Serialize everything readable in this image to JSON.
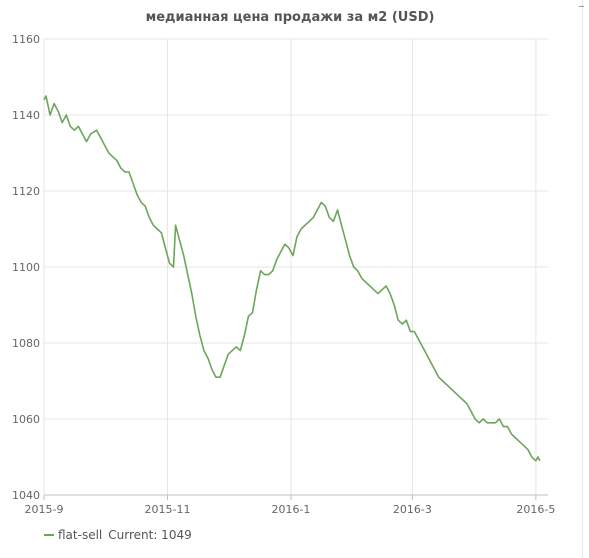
{
  "chart_data": {
    "type": "line",
    "title": "медианная цена продажи за м2 (USD)",
    "xlabel": "",
    "ylabel": "",
    "ylim": [
      1040,
      1160
    ],
    "yticks": [
      1040,
      1060,
      1080,
      1100,
      1120,
      1140,
      1160
    ],
    "xticks": [
      "2015-9",
      "2015-11",
      "2016-1",
      "2016-3",
      "2016-5"
    ],
    "x_range": [
      "2015-09-01",
      "2016-05-07"
    ],
    "grid": true,
    "legend_position": "bottom-left",
    "series": [
      {
        "name": "flat-sell",
        "color": "#6da55b",
        "points": [
          [
            "2015-09-01",
            1144
          ],
          [
            "2015-09-02",
            1145
          ],
          [
            "2015-09-04",
            1140
          ],
          [
            "2015-09-06",
            1143
          ],
          [
            "2015-09-08",
            1141
          ],
          [
            "2015-09-10",
            1138
          ],
          [
            "2015-09-12",
            1140
          ],
          [
            "2015-09-14",
            1137
          ],
          [
            "2015-09-16",
            1136
          ],
          [
            "2015-09-18",
            1137
          ],
          [
            "2015-09-20",
            1135
          ],
          [
            "2015-09-22",
            1133
          ],
          [
            "2015-09-24",
            1135
          ],
          [
            "2015-09-27",
            1136
          ],
          [
            "2015-09-29",
            1134
          ],
          [
            "2015-10-01",
            1132
          ],
          [
            "2015-10-03",
            1130
          ],
          [
            "2015-10-05",
            1129
          ],
          [
            "2015-10-07",
            1128
          ],
          [
            "2015-10-09",
            1126
          ],
          [
            "2015-10-11",
            1125
          ],
          [
            "2015-10-13",
            1125
          ],
          [
            "2015-10-15",
            1122
          ],
          [
            "2015-10-17",
            1119
          ],
          [
            "2015-10-19",
            1117
          ],
          [
            "2015-10-21",
            1116
          ],
          [
            "2015-10-23",
            1113
          ],
          [
            "2015-10-25",
            1111
          ],
          [
            "2015-10-27",
            1110
          ],
          [
            "2015-10-29",
            1109
          ],
          [
            "2015-10-31",
            1105
          ],
          [
            "2015-11-02",
            1101
          ],
          [
            "2015-11-04",
            1100
          ],
          [
            "2015-11-05",
            1111
          ],
          [
            "2015-11-07",
            1107
          ],
          [
            "2015-11-09",
            1103
          ],
          [
            "2015-11-11",
            1098
          ],
          [
            "2015-11-13",
            1093
          ],
          [
            "2015-11-15",
            1087
          ],
          [
            "2015-11-17",
            1082
          ],
          [
            "2015-11-19",
            1078
          ],
          [
            "2015-11-21",
            1076
          ],
          [
            "2015-11-23",
            1073
          ],
          [
            "2015-11-25",
            1071
          ],
          [
            "2015-11-27",
            1071
          ],
          [
            "2015-11-29",
            1074
          ],
          [
            "2015-12-01",
            1077
          ],
          [
            "2015-12-03",
            1078
          ],
          [
            "2015-12-05",
            1079
          ],
          [
            "2015-12-07",
            1078
          ],
          [
            "2015-12-09",
            1082
          ],
          [
            "2015-12-11",
            1087
          ],
          [
            "2015-12-13",
            1088
          ],
          [
            "2015-12-15",
            1094
          ],
          [
            "2015-12-17",
            1099
          ],
          [
            "2015-12-19",
            1098
          ],
          [
            "2015-12-21",
            1098
          ],
          [
            "2015-12-23",
            1099
          ],
          [
            "2015-12-25",
            1102
          ],
          [
            "2015-12-27",
            1104
          ],
          [
            "2015-12-29",
            1106
          ],
          [
            "2015-12-31",
            1105
          ],
          [
            "2016-01-02",
            1103
          ],
          [
            "2016-01-04",
            1108
          ],
          [
            "2016-01-06",
            1110
          ],
          [
            "2016-01-08",
            1111
          ],
          [
            "2016-01-10",
            1112
          ],
          [
            "2016-01-12",
            1113
          ],
          [
            "2016-01-14",
            1115
          ],
          [
            "2016-01-16",
            1117
          ],
          [
            "2016-01-18",
            1116
          ],
          [
            "2016-01-20",
            1113
          ],
          [
            "2016-01-22",
            1112
          ],
          [
            "2016-01-24",
            1115
          ],
          [
            "2016-01-26",
            1111
          ],
          [
            "2016-01-28",
            1107
          ],
          [
            "2016-01-30",
            1103
          ],
          [
            "2016-02-01",
            1100
          ],
          [
            "2016-02-03",
            1099
          ],
          [
            "2016-02-05",
            1097
          ],
          [
            "2016-02-07",
            1096
          ],
          [
            "2016-02-09",
            1095
          ],
          [
            "2016-02-11",
            1094
          ],
          [
            "2016-02-13",
            1093
          ],
          [
            "2016-02-15",
            1094
          ],
          [
            "2016-02-17",
            1095
          ],
          [
            "2016-02-19",
            1093
          ],
          [
            "2016-02-21",
            1090
          ],
          [
            "2016-02-23",
            1086
          ],
          [
            "2016-02-25",
            1085
          ],
          [
            "2016-02-27",
            1086
          ],
          [
            "2016-02-29",
            1083
          ],
          [
            "2016-03-02",
            1083
          ],
          [
            "2016-03-04",
            1081
          ],
          [
            "2016-03-06",
            1079
          ],
          [
            "2016-03-08",
            1077
          ],
          [
            "2016-03-10",
            1075
          ],
          [
            "2016-03-12",
            1073
          ],
          [
            "2016-03-14",
            1071
          ],
          [
            "2016-03-16",
            1070
          ],
          [
            "2016-03-18",
            1069
          ],
          [
            "2016-03-20",
            1068
          ],
          [
            "2016-03-22",
            1067
          ],
          [
            "2016-03-24",
            1066
          ],
          [
            "2016-03-26",
            1065
          ],
          [
            "2016-03-28",
            1064
          ],
          [
            "2016-03-30",
            1062
          ],
          [
            "2016-04-01",
            1060
          ],
          [
            "2016-04-03",
            1059
          ],
          [
            "2016-04-05",
            1060
          ],
          [
            "2016-04-07",
            1059
          ],
          [
            "2016-04-09",
            1059
          ],
          [
            "2016-04-11",
            1059
          ],
          [
            "2016-04-13",
            1060
          ],
          [
            "2016-04-15",
            1058
          ],
          [
            "2016-04-17",
            1058
          ],
          [
            "2016-04-19",
            1056
          ],
          [
            "2016-04-21",
            1055
          ],
          [
            "2016-04-23",
            1054
          ],
          [
            "2016-04-25",
            1053
          ],
          [
            "2016-04-27",
            1052
          ],
          [
            "2016-04-29",
            1050
          ],
          [
            "2016-05-01",
            1049
          ],
          [
            "2016-05-02",
            1050
          ],
          [
            "2016-05-03",
            1049
          ]
        ]
      }
    ]
  },
  "legend": {
    "series_label": "flat-sell",
    "current_text": "Current: 1049"
  },
  "colors": {
    "grid": "#e6e6e6",
    "axis": "#c0c0c0",
    "line": "#6da55b"
  }
}
